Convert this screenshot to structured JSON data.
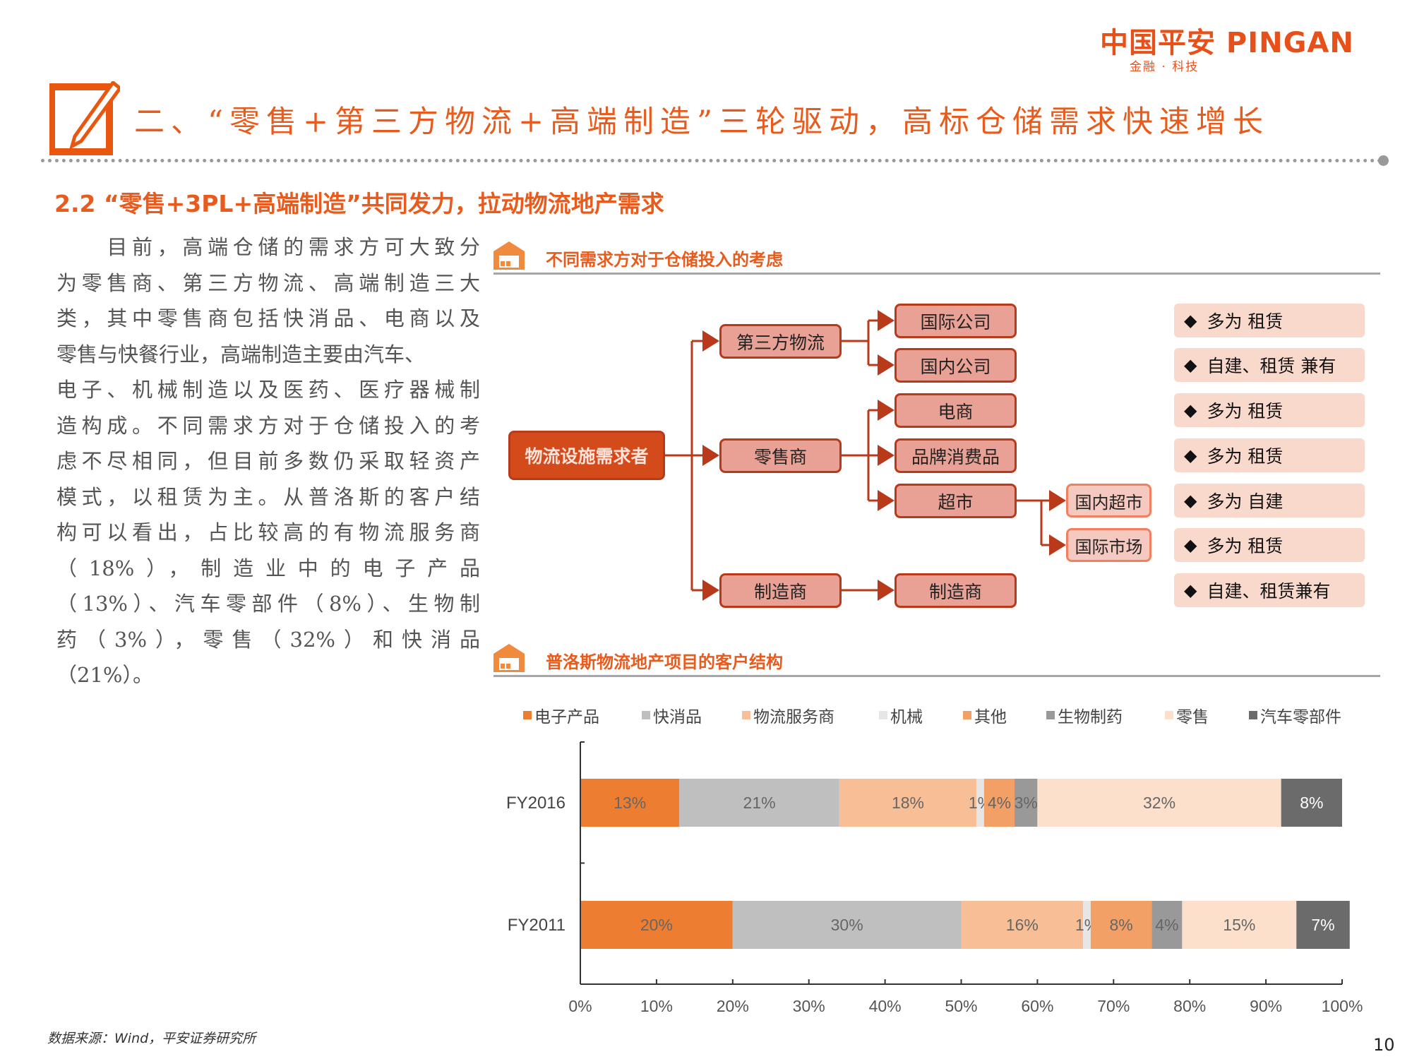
{
  "logo": {
    "brand": "中国平安 PINGAN",
    "tagline": "金融 · 科技"
  },
  "header": {
    "title": "二、“零售+第三方物流+高端制造”三轮驱动，高标仓储需求快速增长"
  },
  "subtitle": "2.2 “零售+3PL+高端制造”共同发力，拉动物流地产需求",
  "body_lines": [
    "　　目前，高端仓储的需求方可大致分",
    "为零售商、第三方物流、高端制造三大",
    "类，其中零售商包括快消品、电商以及",
    "零售与快餐行业，高端制造主要由汽车、",
    "电子、机械制造以及医药、医疗器械制",
    "造构成。不同需求方对于仓储投入的考",
    "虑不尽相同，但目前多数仍采取轻资产",
    "模式，以租赁为主。从普洛斯的客户结",
    "构可以看出，占比较高的有物流服务商",
    "（18%），制造业中的电子产品",
    "（13%）、汽车零部件（8%）、生物制",
    "药（3%），零售（32%）和快消品",
    "（21%）。"
  ],
  "section1": {
    "title": "不同需求方对于仓储投入的考虑",
    "root": "物流设施需求者",
    "level2": [
      "第三方物流",
      "零售商",
      "制造商"
    ],
    "level3": [
      "国际公司",
      "国内公司",
      "电商",
      "品牌消费品",
      "超市",
      "制造商"
    ],
    "level4": [
      "国内超市",
      "国际市场"
    ],
    "considerations": [
      "多为 租赁",
      "自建、租赁 兼有",
      "多为 租赁",
      "多为 租赁",
      "多为 自建",
      "多为 租赁",
      "自建、租赁兼有"
    ],
    "bullet": "◆"
  },
  "section2": {
    "title": "普洛斯物流地产项目的客户结构"
  },
  "chart_data": {
    "type": "bar",
    "orientation": "horizontal",
    "stacked": true,
    "categories": [
      "FY2016",
      "FY2011"
    ],
    "series": [
      {
        "name": "电子产品",
        "values": [
          13,
          20
        ],
        "color": "#ED7D31"
      },
      {
        "name": "快消品",
        "values": [
          21,
          30
        ],
        "color": "#BFBFBF"
      },
      {
        "name": "物流服务商",
        "values": [
          18,
          16
        ],
        "color": "#F8BF97"
      },
      {
        "name": "机械",
        "values": [
          1,
          1
        ],
        "color": "#E6E6E6"
      },
      {
        "name": "其他",
        "values": [
          4,
          8
        ],
        "color": "#F2A066"
      },
      {
        "name": "生物制药",
        "values": [
          3,
          4
        ],
        "color": "#999999"
      },
      {
        "name": "零售",
        "values": [
          32,
          15
        ],
        "color": "#FCE0CB"
      },
      {
        "name": "汽车零部件",
        "values": [
          8,
          7
        ],
        "color": "#6B6B6B"
      }
    ],
    "xlim": [
      0,
      100
    ],
    "xticks": [
      "0%",
      "10%",
      "20%",
      "30%",
      "40%",
      "50%",
      "60%",
      "70%",
      "80%",
      "90%",
      "100%"
    ],
    "legend": "top",
    "grid": false
  },
  "footer": {
    "source": "数据来源：Wind，平安证券研究所",
    "page": "10"
  },
  "colors": {
    "accent": "#E85B1C",
    "connector": "#B83A1A",
    "box": "#E9A195",
    "root": "#D34A1B",
    "note": "#F9D9CC"
  }
}
